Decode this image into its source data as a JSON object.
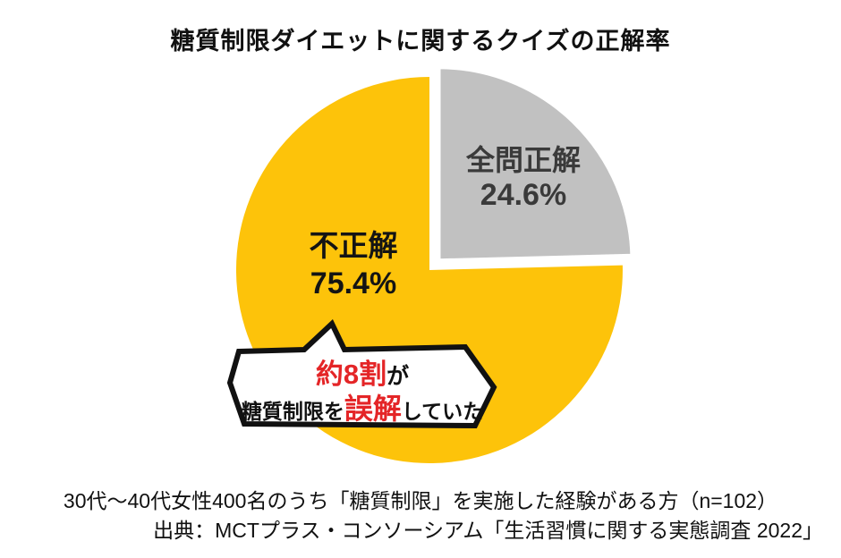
{
  "title": "糖質制限ダイエットに関するクイズの正解率",
  "chart_data": {
    "type": "pie",
    "title": "糖質制限ダイエットに関するクイズの正解率",
    "direction": "clockwise",
    "start_angle_deg": 0,
    "legend_position": "none",
    "labels_inside": true,
    "slices": [
      {
        "label": "全問正解",
        "value": 24.6,
        "display": "24.6%",
        "color": "#c1c1c1",
        "exploded": true
      },
      {
        "label": "不正解",
        "value": 75.4,
        "display": "75.4%",
        "color": "#fdc30a",
        "exploded": false
      }
    ]
  },
  "callout": {
    "line1_highlight": "約8割",
    "line1_rest": "が",
    "line2_pre": "糖質制限を",
    "line2_highlight": "誤解",
    "line2_post": "していた",
    "highlight_color": "#e42527"
  },
  "footer": {
    "note": "30代～40代女性400名のうち「糖質制限」を実施した経験がある方（n=102）",
    "source": "出典：MCTプラス・コンソーシアム「生活習慣に関する実態調査 2022」"
  },
  "colors": {
    "background": "#ffffff",
    "slice_correct": "#c1c1c1",
    "slice_incorrect": "#fdc30a",
    "accent_red": "#e42527",
    "text": "#111111"
  }
}
